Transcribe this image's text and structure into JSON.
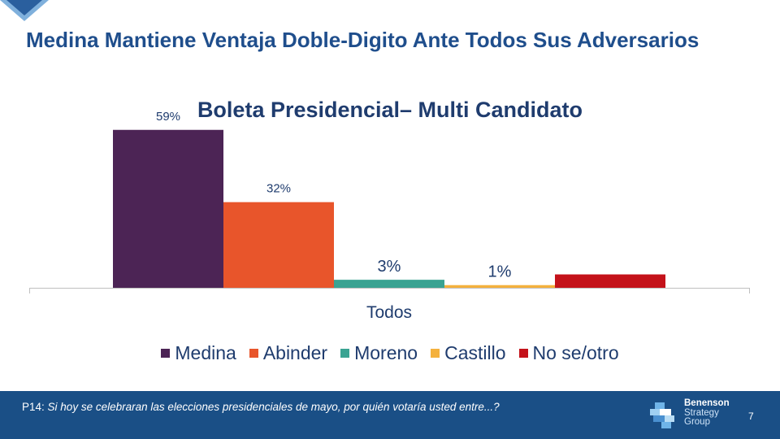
{
  "slide": {
    "title": "Medina Mantiene Ventaja Doble-Digito Ante Todos Sus Adversarios",
    "page_number": "7"
  },
  "chart_data": {
    "type": "bar",
    "title": "Boleta Presidencial– Multi Candidato",
    "xlabel": "",
    "ylabel": "",
    "categories": [
      "Todos"
    ],
    "ylim": [
      0,
      65
    ],
    "grid": false,
    "legend_position": "bottom",
    "series": [
      {
        "name": "Medina",
        "values": [
          59
        ],
        "label": "59%",
        "color": "#4c2455"
      },
      {
        "name": "Abinder",
        "values": [
          32
        ],
        "label": "32%",
        "color": "#e8552b"
      },
      {
        "name": "Moreno",
        "values": [
          3
        ],
        "label": "3%",
        "color": "#3aa392"
      },
      {
        "name": "Castillo",
        "values": [
          1
        ],
        "label": "1%",
        "color": "#f4b13d"
      },
      {
        "name": "No se/otro",
        "values": [
          5
        ],
        "label": "",
        "color": "#c4121a"
      }
    ]
  },
  "footer": {
    "question_id": "P14:",
    "question_text": "Si hoy se celebraran las elecciones presidenciales de mayo, por quién votaría usted entre...?",
    "logo_line1": "Benenson",
    "logo_line2": "Strategy",
    "logo_line3": "Group"
  },
  "colors": {
    "title": "#1f4e8c",
    "footer_bg": "#1a4f86"
  }
}
